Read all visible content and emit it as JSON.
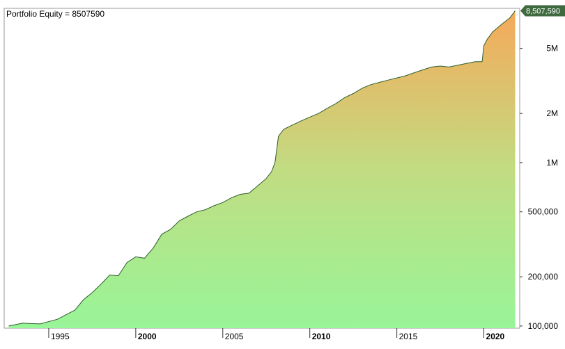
{
  "chart_data": {
    "type": "area",
    "title": "Portfolio Equity = 8507590",
    "last_value_label": "8,507,590",
    "yscale": "log",
    "ylim": [
      97000,
      8800000
    ],
    "xlim": [
      1992.6,
      2021.9
    ],
    "y_ticks": [
      {
        "value": 100000,
        "label": "100,000"
      },
      {
        "value": 200000,
        "label": "200,000"
      },
      {
        "value": 500000,
        "label": "500,000"
      },
      {
        "value": 1000000,
        "label": "1M"
      },
      {
        "value": 2000000,
        "label": "2M"
      },
      {
        "value": 5000000,
        "label": "5M"
      }
    ],
    "x_ticks": [
      {
        "value": 1995,
        "label": "1995",
        "bold": false
      },
      {
        "value": 2000,
        "label": "2000",
        "bold": true
      },
      {
        "value": 2005,
        "label": "2005",
        "bold": false
      },
      {
        "value": 2010,
        "label": "2010",
        "bold": true
      },
      {
        "value": 2015,
        "label": "2015",
        "bold": false
      },
      {
        "value": 2020,
        "label": "2020",
        "bold": true
      }
    ],
    "series": [
      {
        "x": [
          1992.7,
          1993.5,
          1994.5,
          1995.5,
          1996.5,
          1997.0,
          1997.5,
          1998.0,
          1998.5,
          1999.0,
          1999.5,
          2000.0,
          2000.5,
          2001.0,
          2001.5,
          2002.0,
          2002.5,
          2003.0,
          2003.5,
          2004.0,
          2004.5,
          2005.0,
          2005.5,
          2006.0,
          2006.5,
          2007.0,
          2007.5,
          2007.8,
          2008.0,
          2008.2,
          2008.5,
          2009.0,
          2009.5,
          2010.0,
          2010.5,
          2011.0,
          2011.5,
          2012.0,
          2012.5,
          2013.0,
          2013.5,
          2014.0,
          2014.5,
          2015.0,
          2015.5,
          2016.0,
          2016.5,
          2017.0,
          2017.5,
          2018.0,
          2018.5,
          2019.0,
          2019.5,
          2019.9,
          2020.0,
          2020.2,
          2020.5,
          2021.0,
          2021.5,
          2021.8
        ],
        "y": [
          100000,
          104000,
          103000,
          110000,
          125000,
          145000,
          160000,
          180000,
          205000,
          203000,
          245000,
          265000,
          260000,
          300000,
          365000,
          390000,
          440000,
          470000,
          500000,
          515000,
          545000,
          570000,
          610000,
          640000,
          650000,
          720000,
          800000,
          880000,
          1000000,
          1450000,
          1600000,
          1700000,
          1800000,
          1900000,
          2000000,
          2150000,
          2300000,
          2500000,
          2650000,
          2850000,
          3000000,
          3100000,
          3200000,
          3300000,
          3400000,
          3550000,
          3700000,
          3850000,
          3900000,
          3850000,
          3950000,
          4050000,
          4150000,
          4150000,
          5200000,
          5700000,
          6300000,
          7000000,
          7700000,
          8507590
        ]
      }
    ],
    "colors": {
      "line": "#2e5e2e",
      "fill_top": "#f5a95a",
      "fill_mid": "#c2dc82",
      "fill_bottom": "#98f598",
      "axis": "#999999",
      "tick": "#333333",
      "badge": "#3f6a3f"
    }
  }
}
